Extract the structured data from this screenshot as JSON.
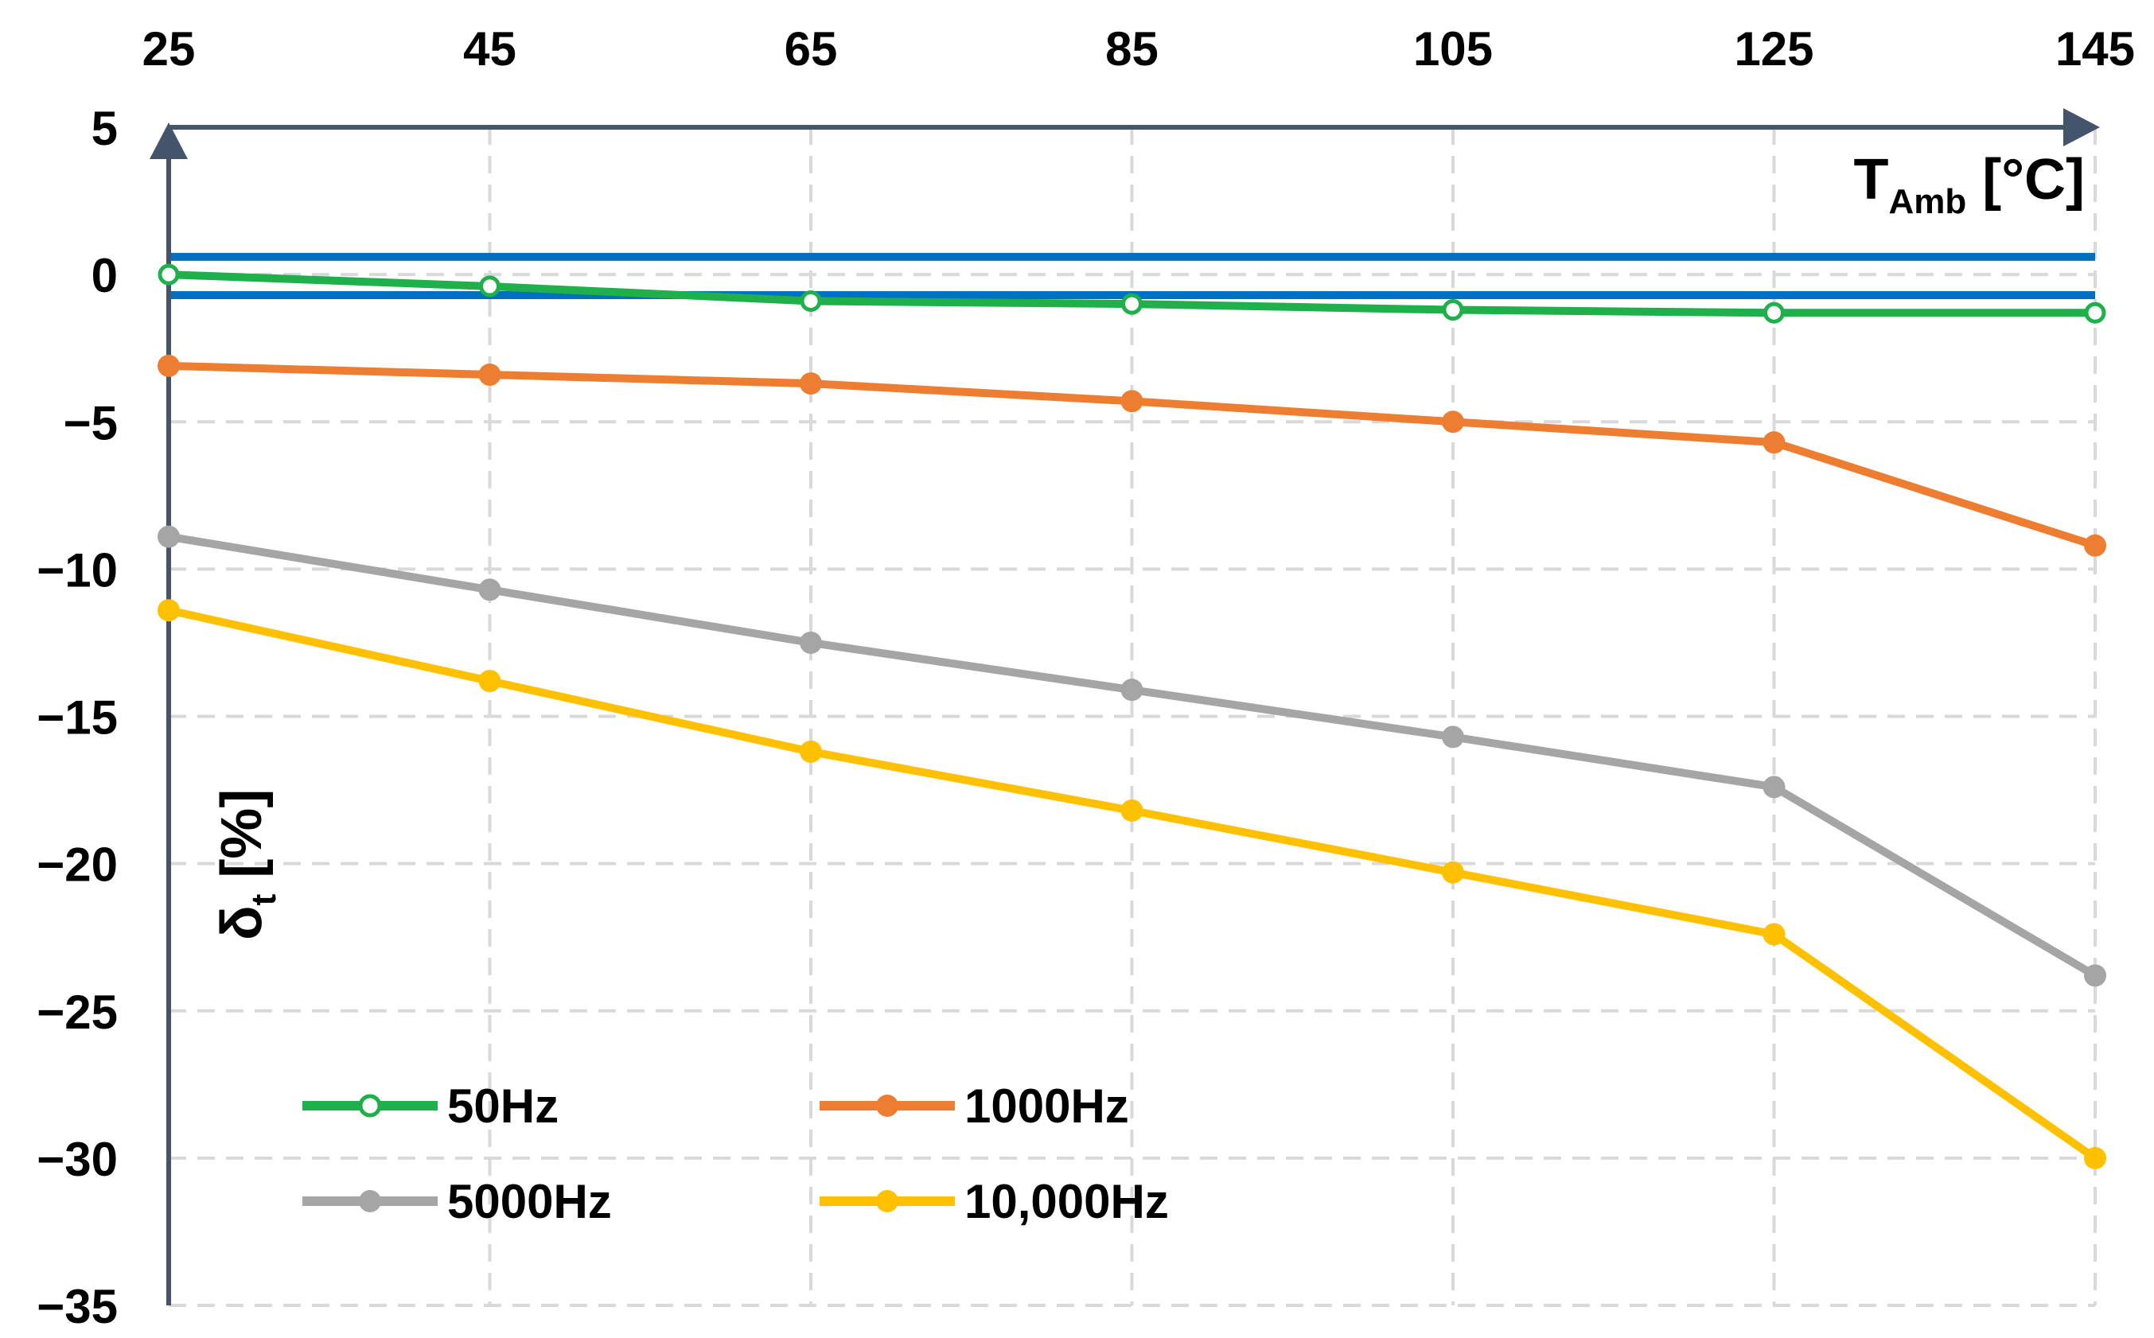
{
  "chart_data": {
    "type": "line",
    "x": [
      25,
      45,
      65,
      85,
      105,
      125,
      145
    ],
    "xlim": [
      25,
      145
    ],
    "ylim": [
      -35,
      5
    ],
    "x_ticks": [
      "25",
      "45",
      "65",
      "85",
      "105",
      "125",
      "145"
    ],
    "y_ticks": [
      {
        "value": 5,
        "label": "5"
      },
      {
        "value": 0,
        "label": "0"
      },
      {
        "value": -5,
        "label": "−5"
      },
      {
        "value": -10,
        "label": "−10"
      },
      {
        "value": -15,
        "label": "−15"
      },
      {
        "value": -20,
        "label": "−20"
      },
      {
        "value": -25,
        "label": "−25"
      },
      {
        "value": -30,
        "label": "−30"
      },
      {
        "value": -35,
        "label": "−35"
      }
    ],
    "xlabel": {
      "main": "T",
      "sub": "Amb",
      "unit": " [°C]"
    },
    "ylabel": {
      "main": "δ",
      "sub": "t",
      "unit": " [%]"
    },
    "x_axis_position": "top",
    "grid": true,
    "legend_position": "bottom-left",
    "series": [
      {
        "name": "50Hz",
        "color": "#1fb04b",
        "marker": "hollow-circle",
        "values": [
          0,
          -0.4,
          -0.9,
          -1.0,
          -1.2,
          -1.3,
          -1.3
        ]
      },
      {
        "name": "1000Hz",
        "color": "#ed7d31",
        "marker": "filled-circle",
        "values": [
          -3.1,
          -3.4,
          -3.7,
          -4.3,
          -5.0,
          -5.7,
          -9.2
        ]
      },
      {
        "name": "5000Hz",
        "color": "#a5a5a5",
        "marker": "filled-circle",
        "values": [
          -8.9,
          -10.7,
          -12.5,
          -14.1,
          -15.7,
          -17.4,
          -23.8
        ]
      },
      {
        "name": "10,000Hz",
        "color": "#ffc000",
        "marker": "filled-circle",
        "values": [
          -11.4,
          -13.8,
          -16.2,
          -18.2,
          -20.3,
          -22.4,
          -30.0
        ]
      }
    ],
    "reference_lines": [
      {
        "value": 0.6,
        "color": "#0070c0"
      },
      {
        "value": -0.7,
        "color": "#0070c0"
      }
    ]
  }
}
